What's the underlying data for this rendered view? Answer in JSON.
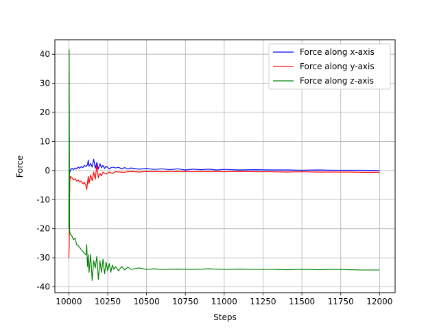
{
  "chart_data": {
    "type": "line",
    "title": "",
    "xlabel": "Steps",
    "ylabel": "Force",
    "xlim": [
      9910,
      12100
    ],
    "ylim": [
      -42,
      45
    ],
    "xticks": [
      10000,
      10250,
      10500,
      10750,
      11000,
      11250,
      11500,
      11750,
      12000
    ],
    "yticks": [
      -40,
      -30,
      -20,
      -10,
      0,
      10,
      20,
      30,
      40
    ],
    "grid": true,
    "legend_position": "top-right",
    "series": [
      {
        "name": "Force along x-axis",
        "color": "#0000ff",
        "x": [
          10000,
          10004,
          10010,
          10020,
          10030,
          10040,
          10050,
          10060,
          10070,
          10080,
          10090,
          10100,
          10110,
          10120,
          10125,
          10130,
          10140,
          10150,
          10160,
          10170,
          10180,
          10190,
          10200,
          10210,
          10220,
          10230,
          10240,
          10260,
          10280,
          10300,
          10320,
          10340,
          10360,
          10380,
          10400,
          10450,
          10500,
          10550,
          10600,
          10650,
          10700,
          10750,
          10800,
          10850,
          10900,
          10950,
          11000,
          11100,
          11200,
          11300,
          11400,
          11500,
          11600,
          11700,
          11800,
          11900,
          12000
        ],
        "y": [
          -2,
          -1,
          0.2,
          0.8,
          0.3,
          0.9,
          0.6,
          1.2,
          0.8,
          1.4,
          1.0,
          1.8,
          1.4,
          2.0,
          3.6,
          1.5,
          2.5,
          1.2,
          3.9,
          0.8,
          2.8,
          0.5,
          2.4,
          1.0,
          1.8,
          0.7,
          1.5,
          0.6,
          1.2,
          0.9,
          1.1,
          0.6,
          1.0,
          0.5,
          0.9,
          0.5,
          0.7,
          0.4,
          0.6,
          0.3,
          0.6,
          0.2,
          0.5,
          0.3,
          0.5,
          0.2,
          0.4,
          0.2,
          0.3,
          0.2,
          0.2,
          0.1,
          0.2,
          0.1,
          0.1,
          0.1,
          0.0
        ]
      },
      {
        "name": "Force along y-axis",
        "color": "#ff0000",
        "x": [
          10000,
          10002,
          10006,
          10010,
          10020,
          10030,
          10040,
          10050,
          10060,
          10070,
          10080,
          10090,
          10100,
          10110,
          10115,
          10120,
          10125,
          10130,
          10140,
          10150,
          10160,
          10170,
          10180,
          10190,
          10200,
          10210,
          10220,
          10240,
          10260,
          10280,
          10300,
          10350,
          10400,
          10450,
          10500,
          10600,
          10700,
          10800,
          10900,
          11000,
          11100,
          11200,
          11300,
          11400,
          11500,
          11600,
          11700,
          11800,
          11900,
          12000
        ],
        "y": [
          -30,
          -26,
          -3.5,
          -2,
          -2.5,
          -3.2,
          -2.8,
          -3.6,
          -3.2,
          -4.0,
          -3.6,
          -4.6,
          -4.0,
          -5.2,
          -6.5,
          -4.2,
          -2.0,
          -4.5,
          -1.5,
          -3.5,
          -0.5,
          -3.0,
          2.0,
          -2.5,
          -1.0,
          -1.8,
          -0.6,
          -1.2,
          -0.5,
          -1.0,
          -0.4,
          -0.6,
          -0.3,
          -0.5,
          -0.3,
          -0.4,
          -0.3,
          -0.4,
          -0.3,
          -0.4,
          -0.3,
          -0.4,
          -0.4,
          -0.5,
          -0.4,
          -0.5,
          -0.5,
          -0.5,
          -0.6,
          -0.6
        ]
      },
      {
        "name": "Force along z-axis",
        "color": "#008000",
        "x": [
          10000,
          10001,
          10002,
          10003,
          10005,
          10010,
          10020,
          10030,
          10040,
          10050,
          10060,
          10070,
          10080,
          10090,
          10100,
          10110,
          10115,
          10120,
          10125,
          10130,
          10140,
          10150,
          10160,
          10170,
          10180,
          10190,
          10200,
          10210,
          10220,
          10230,
          10240,
          10250,
          10260,
          10270,
          10280,
          10290,
          10300,
          10320,
          10340,
          10360,
          10380,
          10400,
          10450,
          10500,
          10550,
          10600,
          10700,
          10800,
          10900,
          11000,
          11100,
          11200,
          11300,
          11400,
          11500,
          11600,
          11700,
          11800,
          11900,
          12000
        ],
        "y": [
          -20,
          0,
          41.5,
          20,
          -21,
          -22,
          -22.5,
          -23.8,
          -23.2,
          -25.5,
          -25.8,
          -26.5,
          -27.2,
          -27.8,
          -28.5,
          -29.0,
          -25.5,
          -33,
          -29,
          -35,
          -28.8,
          -37.8,
          -31,
          -33.5,
          -29.5,
          -37.5,
          -31,
          -35,
          -30.5,
          -35.5,
          -31.5,
          -34.5,
          -32,
          -35,
          -32.5,
          -34,
          -33,
          -34.5,
          -33,
          -34.2,
          -33.2,
          -34,
          -33.5,
          -34,
          -33.8,
          -34,
          -33.9,
          -34,
          -33.8,
          -34,
          -33.9,
          -34,
          -34,
          -34.1,
          -34,
          -34.1,
          -34,
          -34.1,
          -34.2,
          -34.2
        ]
      }
    ]
  }
}
